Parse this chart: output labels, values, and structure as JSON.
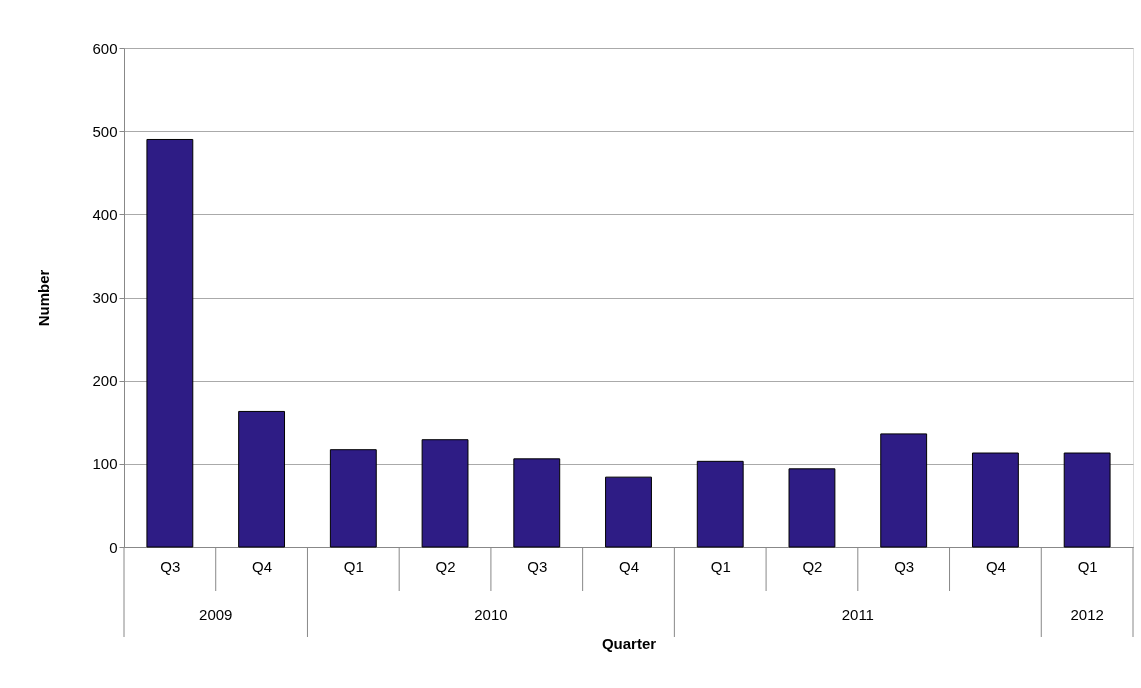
{
  "chart_data": {
    "type": "bar",
    "xlabel": "Quarter",
    "ylabel": "Number",
    "categories": [
      "Q3",
      "Q4",
      "Q1",
      "Q2",
      "Q3",
      "Q4",
      "Q1",
      "Q2",
      "Q3",
      "Q4",
      "Q1"
    ],
    "values": [
      490,
      163,
      117,
      129,
      106,
      84,
      103,
      94,
      136,
      113,
      113
    ],
    "color": "#2e1c85",
    "ylim": [
      0,
      600
    ],
    "yticks": [
      0,
      100,
      200,
      300,
      400,
      500,
      600
    ],
    "grid": "y",
    "annotations": [
      "2009",
      "2010",
      "2011",
      "2012"
    ]
  }
}
